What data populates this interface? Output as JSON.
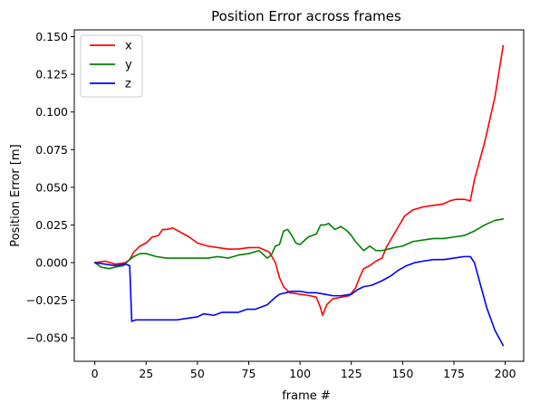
{
  "chart_data": {
    "type": "line",
    "title": "Position Error across frames",
    "xlabel": "frame #",
    "ylabel": "Position Error [m]",
    "xlim": [
      -10,
      209
    ],
    "ylim": [
      -0.0655,
      0.1545
    ],
    "xticks": [
      0,
      25,
      50,
      75,
      100,
      125,
      150,
      175,
      200
    ],
    "xtick_labels": [
      "0",
      "25",
      "50",
      "75",
      "100",
      "125",
      "150",
      "175",
      "200"
    ],
    "yticks": [
      -0.05,
      -0.025,
      0.0,
      0.025,
      0.05,
      0.075,
      0.1,
      0.125,
      0.15
    ],
    "ytick_labels": [
      "−0.050",
      "−0.025",
      "0.000",
      "0.025",
      "0.050",
      "0.075",
      "0.100",
      "0.125",
      "0.150"
    ],
    "grid": false,
    "legend_position": "top-left",
    "series": [
      {
        "name": "x",
        "color": "#ff0000",
        "points": [
          [
            0,
            0.0
          ],
          [
            5,
            0.001
          ],
          [
            10,
            -0.001
          ],
          [
            15,
            0.0
          ],
          [
            17,
            0.002
          ],
          [
            19,
            0.007
          ],
          [
            22,
            0.011
          ],
          [
            25,
            0.013
          ],
          [
            28,
            0.017
          ],
          [
            31,
            0.018
          ],
          [
            33,
            0.022
          ],
          [
            35,
            0.022
          ],
          [
            38,
            0.023
          ],
          [
            42,
            0.02
          ],
          [
            46,
            0.017
          ],
          [
            50,
            0.013
          ],
          [
            55,
            0.011
          ],
          [
            60,
            0.01
          ],
          [
            65,
            0.009
          ],
          [
            70,
            0.009
          ],
          [
            75,
            0.01
          ],
          [
            80,
            0.01
          ],
          [
            85,
            0.007
          ],
          [
            88,
            0.0
          ],
          [
            90,
            -0.01
          ],
          [
            92,
            -0.016
          ],
          [
            95,
            -0.02
          ],
          [
            100,
            -0.021
          ],
          [
            105,
            -0.022
          ],
          [
            108,
            -0.023
          ],
          [
            110,
            -0.03
          ],
          [
            111,
            -0.035
          ],
          [
            113,
            -0.028
          ],
          [
            116,
            -0.024
          ],
          [
            120,
            -0.023
          ],
          [
            124,
            -0.022
          ],
          [
            127,
            -0.017
          ],
          [
            129,
            -0.01
          ],
          [
            131,
            -0.004
          ],
          [
            134,
            -0.002
          ],
          [
            137,
            0.001
          ],
          [
            140,
            0.003
          ],
          [
            142,
            0.01
          ],
          [
            145,
            0.017
          ],
          [
            148,
            0.024
          ],
          [
            151,
            0.031
          ],
          [
            155,
            0.035
          ],
          [
            160,
            0.037
          ],
          [
            165,
            0.038
          ],
          [
            170,
            0.039
          ],
          [
            173,
            0.041
          ],
          [
            176,
            0.042
          ],
          [
            180,
            0.042
          ],
          [
            183,
            0.041
          ],
          [
            185,
            0.055
          ],
          [
            190,
            0.08
          ],
          [
            195,
            0.11
          ],
          [
            199,
            0.144
          ]
        ]
      },
      {
        "name": "y",
        "color": "#008000",
        "points": [
          [
            0,
            0.0
          ],
          [
            3,
            -0.003
          ],
          [
            7,
            -0.004
          ],
          [
            10,
            -0.003
          ],
          [
            14,
            -0.002
          ],
          [
            17,
            0.002
          ],
          [
            19,
            0.004
          ],
          [
            22,
            0.006
          ],
          [
            25,
            0.006
          ],
          [
            30,
            0.004
          ],
          [
            35,
            0.003
          ],
          [
            40,
            0.003
          ],
          [
            45,
            0.003
          ],
          [
            50,
            0.003
          ],
          [
            55,
            0.003
          ],
          [
            60,
            0.004
          ],
          [
            65,
            0.003
          ],
          [
            70,
            0.005
          ],
          [
            75,
            0.006
          ],
          [
            80,
            0.008
          ],
          [
            84,
            0.003
          ],
          [
            86,
            0.005
          ],
          [
            88,
            0.011
          ],
          [
            90,
            0.012
          ],
          [
            92,
            0.021
          ],
          [
            94,
            0.022
          ],
          [
            96,
            0.018
          ],
          [
            98,
            0.013
          ],
          [
            100,
            0.012
          ],
          [
            104,
            0.017
          ],
          [
            108,
            0.019
          ],
          [
            110,
            0.025
          ],
          [
            112,
            0.025
          ],
          [
            114,
            0.026
          ],
          [
            117,
            0.022
          ],
          [
            120,
            0.024
          ],
          [
            123,
            0.021
          ],
          [
            125,
            0.018
          ],
          [
            127,
            0.014
          ],
          [
            129,
            0.011
          ],
          [
            131,
            0.008
          ],
          [
            134,
            0.011
          ],
          [
            137,
            0.008
          ],
          [
            140,
            0.008
          ],
          [
            143,
            0.009
          ],
          [
            146,
            0.01
          ],
          [
            150,
            0.011
          ],
          [
            155,
            0.014
          ],
          [
            160,
            0.015
          ],
          [
            165,
            0.016
          ],
          [
            170,
            0.016
          ],
          [
            175,
            0.017
          ],
          [
            180,
            0.018
          ],
          [
            185,
            0.021
          ],
          [
            190,
            0.025
          ],
          [
            195,
            0.028
          ],
          [
            199,
            0.029
          ]
        ]
      },
      {
        "name": "z",
        "color": "#0000ff",
        "points": [
          [
            0,
            0.0
          ],
          [
            5,
            -0.001
          ],
          [
            10,
            -0.002
          ],
          [
            15,
            -0.001
          ],
          [
            17,
            -0.002
          ],
          [
            18,
            -0.039
          ],
          [
            20,
            -0.038
          ],
          [
            25,
            -0.038
          ],
          [
            30,
            -0.038
          ],
          [
            35,
            -0.038
          ],
          [
            40,
            -0.038
          ],
          [
            45,
            -0.037
          ],
          [
            50,
            -0.036
          ],
          [
            53,
            -0.034
          ],
          [
            58,
            -0.035
          ],
          [
            62,
            -0.033
          ],
          [
            66,
            -0.033
          ],
          [
            70,
            -0.033
          ],
          [
            74,
            -0.031
          ],
          [
            78,
            -0.031
          ],
          [
            80,
            -0.03
          ],
          [
            84,
            -0.028
          ],
          [
            88,
            -0.023
          ],
          [
            90,
            -0.021
          ],
          [
            93,
            -0.02
          ],
          [
            96,
            -0.019
          ],
          [
            100,
            -0.019
          ],
          [
            104,
            -0.02
          ],
          [
            108,
            -0.02
          ],
          [
            112,
            -0.021
          ],
          [
            116,
            -0.022
          ],
          [
            120,
            -0.022
          ],
          [
            125,
            -0.021
          ],
          [
            128,
            -0.018
          ],
          [
            131,
            -0.016
          ],
          [
            135,
            -0.015
          ],
          [
            140,
            -0.012
          ],
          [
            144,
            -0.009
          ],
          [
            148,
            -0.005
          ],
          [
            152,
            -0.002
          ],
          [
            156,
            0.0
          ],
          [
            160,
            0.001
          ],
          [
            165,
            0.002
          ],
          [
            170,
            0.002
          ],
          [
            175,
            0.003
          ],
          [
            180,
            0.004
          ],
          [
            183,
            0.004
          ],
          [
            185,
            0.0
          ],
          [
            188,
            -0.015
          ],
          [
            191,
            -0.03
          ],
          [
            195,
            -0.045
          ],
          [
            199,
            -0.055
          ]
        ]
      }
    ]
  }
}
